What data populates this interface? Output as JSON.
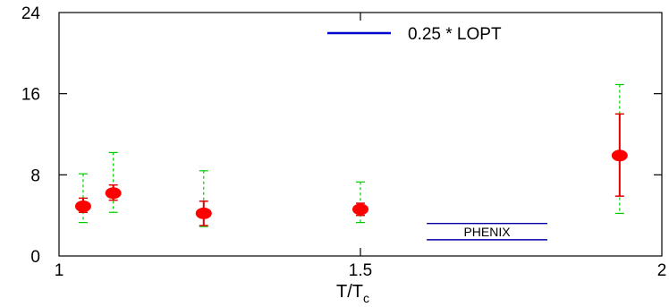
{
  "chart_data": {
    "type": "scatter",
    "title": "",
    "xlabel_main": "T/T",
    "xlabel_sub": "c",
    "ylabel": "",
    "xlim": [
      1,
      2
    ],
    "ylim": [
      0,
      24
    ],
    "x_ticks": [
      {
        "value": 1,
        "label": "1"
      },
      {
        "value": 1.5,
        "label": "1.5"
      },
      {
        "value": 2,
        "label": "2"
      }
    ],
    "y_ticks": [
      {
        "value": 0,
        "label": "0"
      },
      {
        "value": 8,
        "label": "8"
      },
      {
        "value": 16,
        "label": "16"
      },
      {
        "value": 24,
        "label": "24"
      }
    ],
    "points": [
      {
        "x": 1.04,
        "y": 4.9,
        "err_red": [
          4.3,
          5.7
        ],
        "err_green": [
          3.3,
          8.1
        ]
      },
      {
        "x": 1.09,
        "y": 6.2,
        "err_red": [
          5.5,
          7.0
        ],
        "err_green": [
          4.3,
          10.2
        ]
      },
      {
        "x": 1.24,
        "y": 4.2,
        "err_red": [
          3.0,
          5.4
        ],
        "err_green": [
          2.9,
          8.4
        ]
      },
      {
        "x": 1.5,
        "y": 4.6,
        "err_red": [
          4.0,
          5.2
        ],
        "err_green": [
          3.3,
          7.3
        ]
      },
      {
        "x": 1.93,
        "y": 9.9,
        "err_red": [
          5.9,
          14.0
        ],
        "err_green": [
          4.2,
          16.9
        ]
      }
    ],
    "legend": {
      "label": "0.25 * LOPT",
      "color": "#0000cc"
    },
    "band": {
      "label": "PHENIX",
      "x_range": [
        1.61,
        1.81
      ],
      "y_range": [
        1.6,
        3.2
      ],
      "color": "#0000aa"
    },
    "colors": {
      "point": "#ff0000",
      "err_red": "#dd0000",
      "err_green": "#00cc00"
    }
  }
}
